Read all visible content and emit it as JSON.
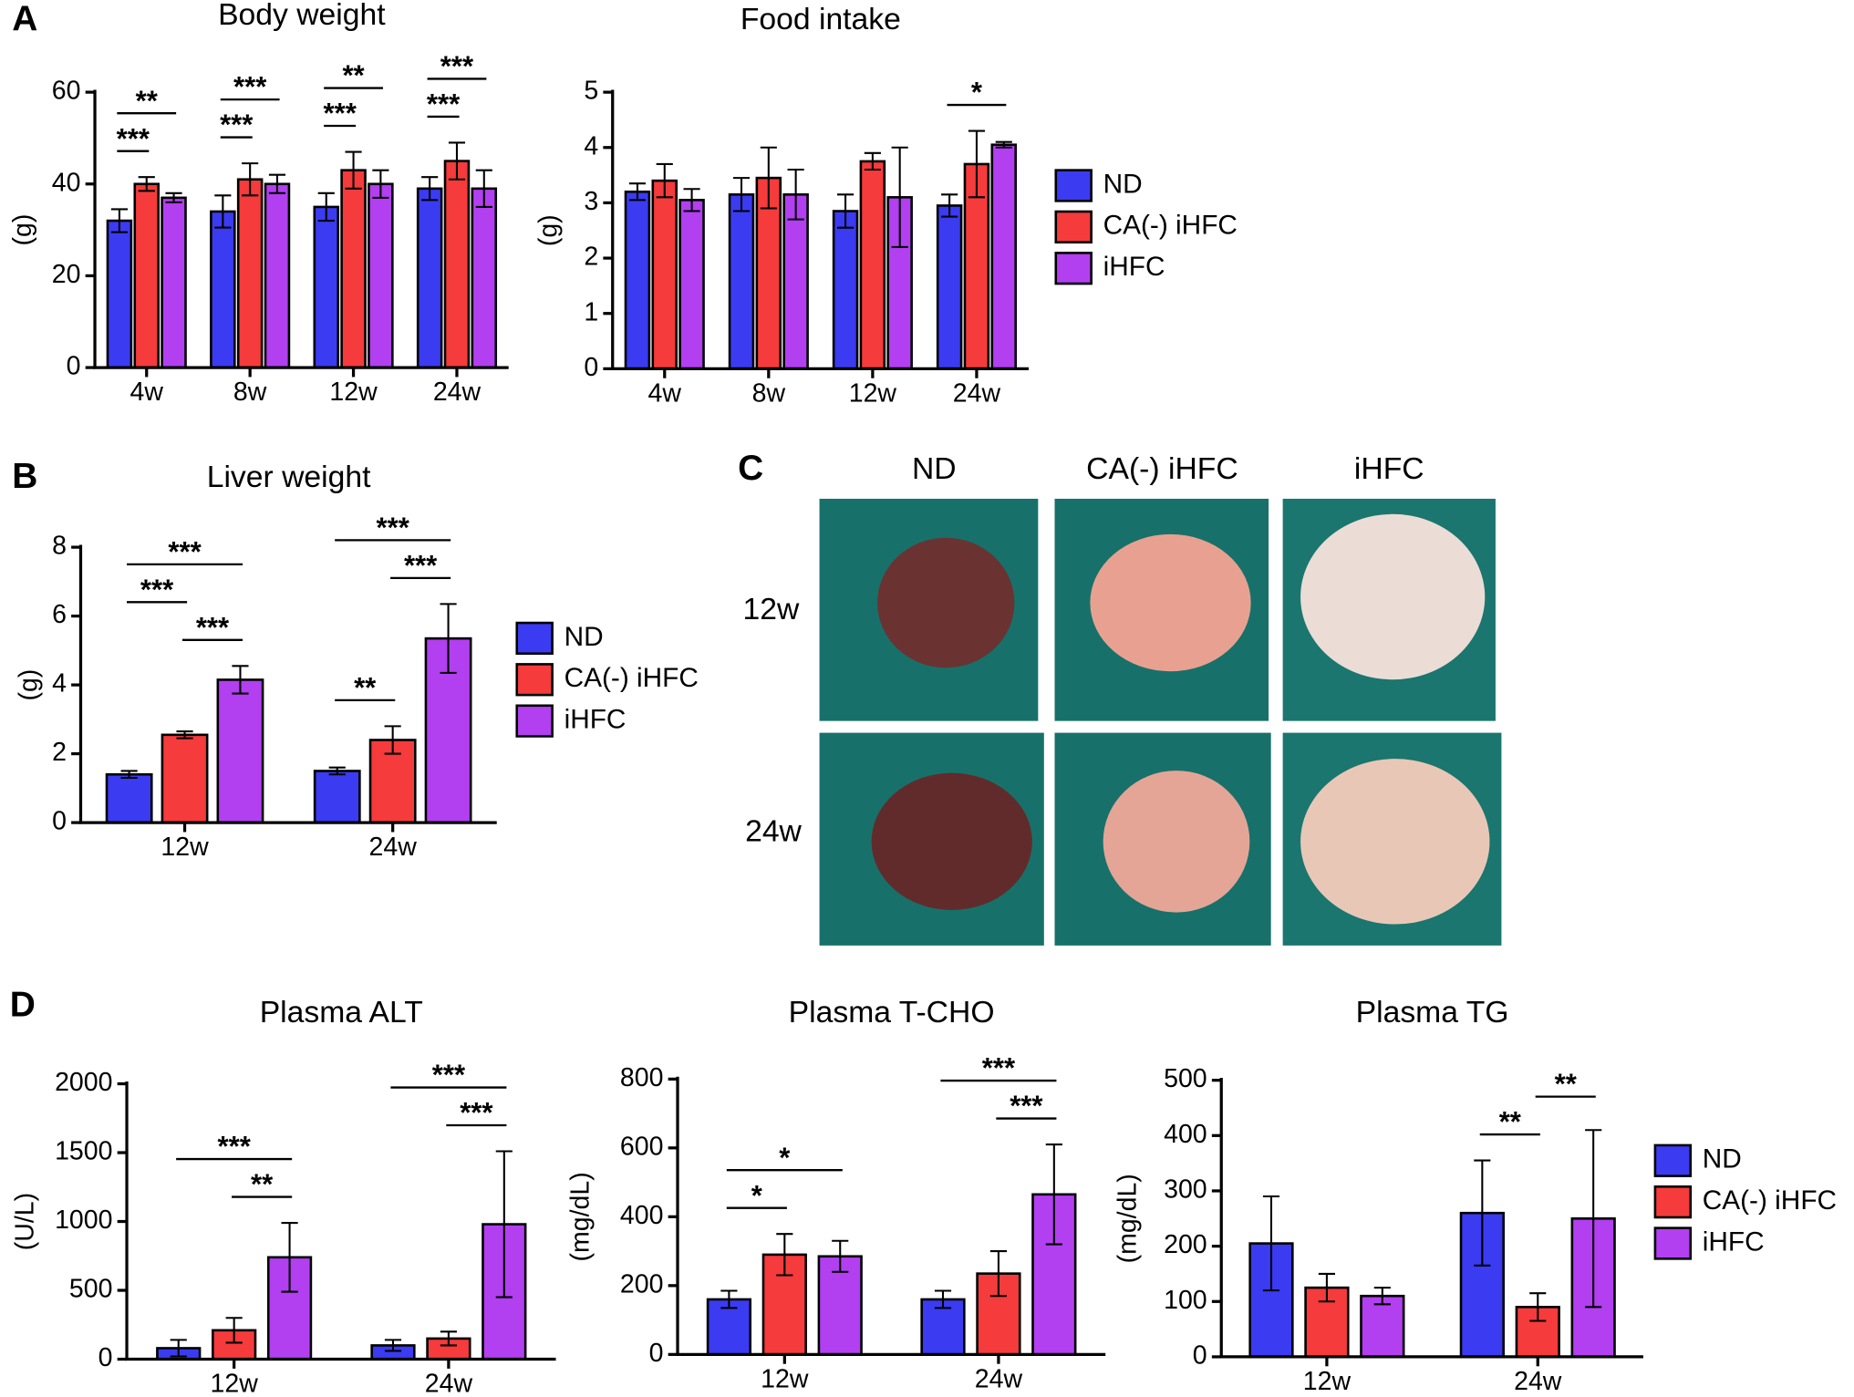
{
  "panel_labels": [
    "A",
    "B",
    "C",
    "D"
  ],
  "photos": {
    "columns": [
      "ND",
      "CA(-) iHFC",
      "iHFC"
    ],
    "rows": [
      "12w",
      "24w"
    ]
  },
  "chart_data": [
    {
      "type": "bar",
      "title": "Body weight",
      "y_label": "(g)",
      "categories": [
        "4w",
        "8w",
        "12w",
        "24w"
      ],
      "series": [
        {
          "name": "ND",
          "color": "#3b3bf2",
          "values": [
            32,
            34,
            35,
            39
          ],
          "errors": [
            2.5,
            3.5,
            3,
            2.5
          ]
        },
        {
          "name": "CA(-) iHFC",
          "color": "#f53b3b",
          "values": [
            40,
            41,
            43,
            45
          ],
          "errors": [
            1.5,
            3.5,
            4,
            4
          ]
        },
        {
          "name": "iHFC",
          "color": "#b23ff0",
          "values": [
            37,
            40,
            40,
            39
          ],
          "errors": [
            1,
            2,
            3,
            4
          ]
        }
      ],
      "ylim": [
        0,
        60
      ],
      "yticks": [
        0,
        20,
        40,
        60
      ],
      "legend": false,
      "annotations": [
        {
          "text": "***",
          "category": 0,
          "from": 0,
          "to": 1
        },
        {
          "text": "**",
          "category": 0,
          "from": 0,
          "to": 2
        },
        {
          "text": "***",
          "category": 1,
          "from": 0,
          "to": 1
        },
        {
          "text": "***",
          "category": 1,
          "from": 0,
          "to": 2
        },
        {
          "text": "***",
          "category": 2,
          "from": 0,
          "to": 1
        },
        {
          "text": "**",
          "category": 2,
          "from": 0,
          "to": 2
        },
        {
          "text": "***",
          "category": 3,
          "from": 0,
          "to": 1
        },
        {
          "text": "***",
          "category": 3,
          "from": 0,
          "to": 2
        }
      ]
    },
    {
      "type": "bar",
      "title": "Food intake",
      "y_label": "(g)",
      "categories": [
        "4w",
        "8w",
        "12w",
        "24w"
      ],
      "series": [
        {
          "name": "ND",
          "color": "#3b3bf2",
          "values": [
            3.2,
            3.15,
            2.85,
            2.95
          ],
          "errors": [
            0.15,
            0.3,
            0.3,
            0.2
          ]
        },
        {
          "name": "CA(-) iHFC",
          "color": "#f53b3b",
          "values": [
            3.4,
            3.45,
            3.75,
            3.7
          ],
          "errors": [
            0.3,
            0.55,
            0.15,
            0.6
          ]
        },
        {
          "name": "iHFC",
          "color": "#b23ff0",
          "values": [
            3.05,
            3.15,
            3.1,
            4.05
          ],
          "errors": [
            0.2,
            0.45,
            0.9,
            0.05
          ]
        }
      ],
      "ylim": [
        0,
        5
      ],
      "yticks": [
        0,
        1,
        2,
        3,
        4,
        5
      ],
      "legend": true,
      "annotations": [
        {
          "text": "*",
          "category": 3,
          "from": 0,
          "to": 2
        }
      ]
    },
    {
      "type": "bar",
      "title": "Liver weight",
      "y_label": "(g)",
      "categories": [
        "12w",
        "24w"
      ],
      "series": [
        {
          "name": "ND",
          "color": "#3b3bf2",
          "values": [
            1.4,
            1.5
          ],
          "errors": [
            0.1,
            0.1
          ]
        },
        {
          "name": "CA(-) iHFC",
          "color": "#f53b3b",
          "values": [
            2.55,
            2.4
          ],
          "errors": [
            0.1,
            0.4
          ]
        },
        {
          "name": "iHFC",
          "color": "#b23ff0",
          "values": [
            4.15,
            5.35
          ],
          "errors": [
            0.4,
            1.0
          ]
        }
      ],
      "ylim": [
        0,
        8
      ],
      "yticks": [
        0,
        2,
        4,
        6,
        8
      ],
      "legend": true,
      "annotations": [
        {
          "text": "***",
          "category": 0,
          "from": 1,
          "to": 2
        },
        {
          "text": "***",
          "category": 0,
          "from": 0,
          "to": 1
        },
        {
          "text": "***",
          "category": 0,
          "from": 0,
          "to": 2
        },
        {
          "text": "**",
          "category": 1,
          "from": 0,
          "to": 1
        },
        {
          "text": "***",
          "category": 1,
          "from": 1,
          "to": 2
        },
        {
          "text": "***",
          "category": 1,
          "from": 0,
          "to": 2
        }
      ]
    },
    {
      "type": "bar",
      "title": "Plasma ALT",
      "y_label": "(U/L)",
      "categories": [
        "12w",
        "24w"
      ],
      "series": [
        {
          "name": "ND",
          "color": "#3b3bf2",
          "values": [
            80,
            100
          ],
          "errors": [
            60,
            40
          ]
        },
        {
          "name": "CA(-) iHFC",
          "color": "#f53b3b",
          "values": [
            210,
            150
          ],
          "errors": [
            90,
            50
          ]
        },
        {
          "name": "iHFC",
          "color": "#b23ff0",
          "values": [
            740,
            980
          ],
          "errors": [
            250,
            530
          ]
        }
      ],
      "ylim": [
        0,
        2000
      ],
      "yticks": [
        0,
        500,
        1000,
        1500,
        2000
      ],
      "legend": false,
      "annotations": [
        {
          "text": "**",
          "category": 0,
          "from": 1,
          "to": 2
        },
        {
          "text": "***",
          "category": 0,
          "from": 0,
          "to": 2
        },
        {
          "text": "***",
          "category": 1,
          "from": 1,
          "to": 2
        },
        {
          "text": "***",
          "category": 1,
          "from": 0,
          "to": 2
        }
      ]
    },
    {
      "type": "bar",
      "title": "Plasma T-CHO",
      "y_label": "(mg/dL)",
      "categories": [
        "12w",
        "24w"
      ],
      "series": [
        {
          "name": "ND",
          "color": "#3b3bf2",
          "values": [
            160,
            160
          ],
          "errors": [
            25,
            25
          ]
        },
        {
          "name": "CA(-) iHFC",
          "color": "#f53b3b",
          "values": [
            290,
            235
          ],
          "errors": [
            60,
            65
          ]
        },
        {
          "name": "iHFC",
          "color": "#b23ff0",
          "values": [
            285,
            465
          ],
          "errors": [
            45,
            145
          ]
        }
      ],
      "ylim": [
        0,
        800
      ],
      "yticks": [
        0,
        200,
        400,
        600,
        800
      ],
      "legend": false,
      "annotations": [
        {
          "text": "*",
          "category": 0,
          "from": 0,
          "to": 1
        },
        {
          "text": "*",
          "category": 0,
          "from": 0,
          "to": 2
        },
        {
          "text": "***",
          "category": 1,
          "from": 1,
          "to": 2
        },
        {
          "text": "***",
          "category": 1,
          "from": 0,
          "to": 2
        }
      ]
    },
    {
      "type": "bar",
      "title": "Plasma TG",
      "y_label": "(mg/dL)",
      "categories": [
        "12w",
        "24w"
      ],
      "series": [
        {
          "name": "ND",
          "color": "#3b3bf2",
          "values": [
            205,
            260
          ],
          "errors": [
            85,
            95
          ]
        },
        {
          "name": "CA(-) iHFC",
          "color": "#f53b3b",
          "values": [
            125,
            90
          ],
          "errors": [
            25,
            25
          ]
        },
        {
          "name": "iHFC",
          "color": "#b23ff0",
          "values": [
            110,
            250
          ],
          "errors": [
            15,
            160
          ]
        }
      ],
      "ylim": [
        0,
        500
      ],
      "yticks": [
        0,
        100,
        200,
        300,
        400,
        500
      ],
      "legend": true,
      "annotations": [
        {
          "text": "**",
          "category": 1,
          "from": 0,
          "to": 1
        },
        {
          "text": "**",
          "category": 1,
          "from": 1,
          "to": 2
        }
      ]
    }
  ]
}
